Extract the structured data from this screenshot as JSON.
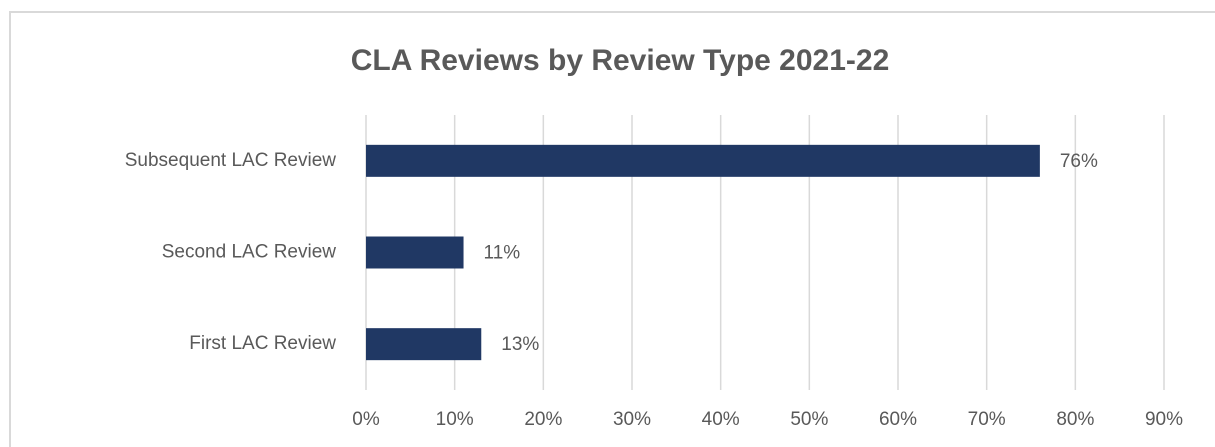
{
  "chart_data": {
    "type": "bar",
    "orientation": "horizontal",
    "title": "CLA Reviews by Review Type 2021-22",
    "categories": [
      "Subsequent LAC Review",
      "Second LAC Review",
      "First LAC Review"
    ],
    "values": [
      76,
      11,
      13
    ],
    "value_labels": [
      "76%",
      "11%",
      "13%"
    ],
    "color": "#203864",
    "xlim": [
      0,
      90
    ],
    "xticks": [
      {
        "value": 0,
        "label": "0%"
      },
      {
        "value": 10,
        "label": "10%"
      },
      {
        "value": 20,
        "label": "20%"
      },
      {
        "value": 30,
        "label": "30%"
      },
      {
        "value": 40,
        "label": "40%"
      },
      {
        "value": 50,
        "label": "50%"
      },
      {
        "value": 60,
        "label": "60%"
      },
      {
        "value": 70,
        "label": "70%"
      },
      {
        "value": 80,
        "label": "80%"
      },
      {
        "value": 90,
        "label": "90%"
      }
    ],
    "grid": true
  }
}
